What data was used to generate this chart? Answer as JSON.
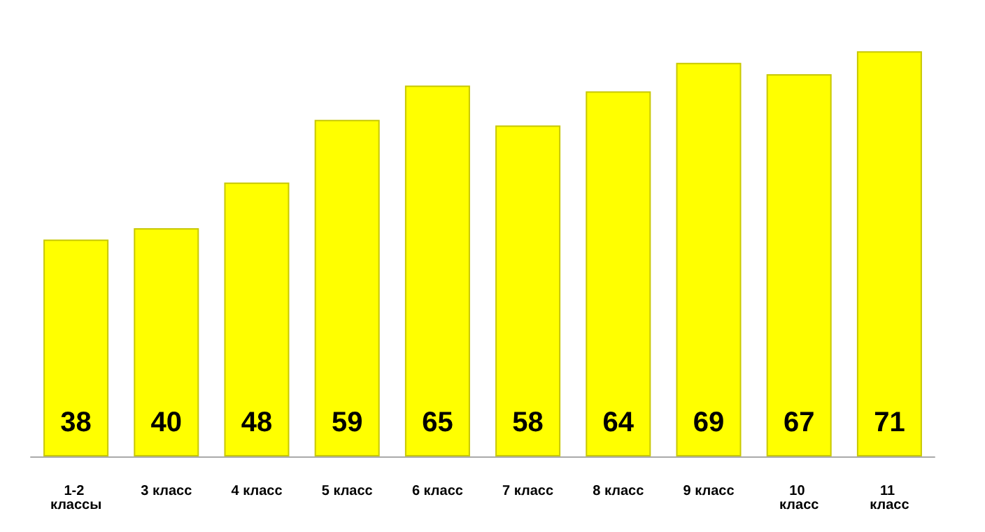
{
  "chart_data": {
    "type": "bar",
    "categories": [
      "1-2 классы",
      "3 класс",
      "4 класс",
      "5 класс",
      "6 класс",
      "7 класс",
      "8 класс",
      "9 класс",
      "10 класс",
      "11 класс"
    ],
    "values": [
      38,
      40,
      48,
      59,
      65,
      58,
      64,
      69,
      67,
      71
    ],
    "color": "#ffff00",
    "data_labels": true
  }
}
